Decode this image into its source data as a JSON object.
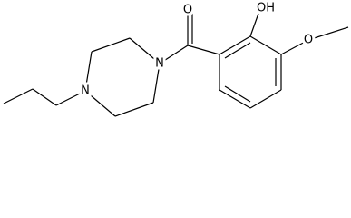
{
  "nodes": [
    {
      "label": "O"
    },
    {
      "label": "OH"
    },
    {
      "label": "O"
    },
    {
      "label": "N"
    },
    {
      "label": "N"
    }
  ]
}
